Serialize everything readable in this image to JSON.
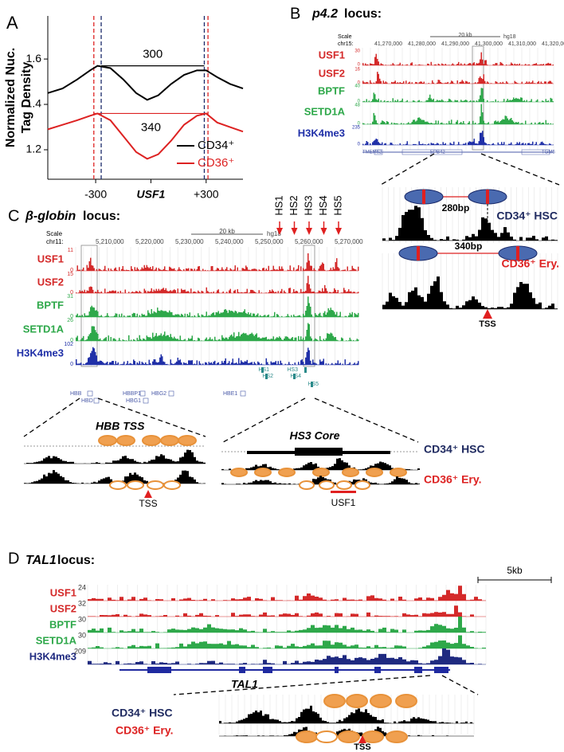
{
  "chart_data": {
    "type": "line",
    "panel_label": "A",
    "ylabel": [
      "Normalized Nuc.",
      "Tag Density"
    ],
    "x": [
      -560,
      -480,
      -400,
      -330,
      -290,
      -220,
      -150,
      -80,
      -20,
      40,
      110,
      180,
      250,
      300,
      360,
      430,
      500
    ],
    "series": [
      {
        "name": "CD34⁺",
        "color": "#000000",
        "values": [
          1.45,
          1.47,
          1.51,
          1.55,
          1.57,
          1.56,
          1.51,
          1.45,
          1.42,
          1.44,
          1.49,
          1.53,
          1.55,
          1.55,
          1.52,
          1.49,
          1.47
        ]
      },
      {
        "name": "CD36⁺",
        "color": "#dd2222",
        "values": [
          1.29,
          1.31,
          1.33,
          1.35,
          1.36,
          1.33,
          1.26,
          1.19,
          1.16,
          1.18,
          1.24,
          1.31,
          1.35,
          1.36,
          1.32,
          1.3,
          1.28
        ]
      }
    ],
    "xlim": [
      -560,
      500
    ],
    "ylim": [
      1.07,
      1.79
    ],
    "xticks": [
      {
        "value": -300,
        "label": "-300"
      },
      {
        "value": 0,
        "label": "USF1"
      },
      {
        "value": 300,
        "label": "+300"
      }
    ],
    "yticks": [
      1.2,
      1.4,
      1.6
    ],
    "markers": [
      {
        "x": -310,
        "color": "#dd2222"
      },
      {
        "x": -270,
        "color": "#1a2a6a"
      },
      {
        "x": 290,
        "color": "#1a2a6a"
      },
      {
        "x": 310,
        "color": "#dd2222"
      }
    ],
    "annotations": [
      {
        "text": "300",
        "x0": -270,
        "x1": 290,
        "y": 1.57,
        "color": "#000000"
      },
      {
        "text": "340",
        "x0": -310,
        "x1": 310,
        "y": 1.36,
        "color": "#dd2222"
      }
    ],
    "legend": "lower right"
  },
  "panels": {
    "B": {
      "label": "B",
      "locus": "p4.2",
      "locus_suffix": " locus:",
      "scale": "Scale",
      "scalebar": "20 kb",
      "assembly": "hg18",
      "chrom": "chr15:",
      "coords": [
        "41,270,000",
        "41,280,000",
        "41,290,000",
        "41,300,000",
        "41,310,000",
        "41,320,000"
      ],
      "tracks": [
        {
          "name": "USF1",
          "color": "#d42a2a",
          "max": "30",
          "min": "0"
        },
        {
          "name": "USF2",
          "color": "#d42a2a",
          "max": "16",
          "min": "0"
        },
        {
          "name": "BPTF",
          "color": "#2ea84a",
          "max": "40",
          "min": "0"
        },
        {
          "name": "SETD1A",
          "color": "#2ea84a",
          "max": "48",
          "min": "0"
        },
        {
          "name": "H3K4me3",
          "color": "#2030a8",
          "max": "235",
          "min": "0"
        }
      ],
      "genes": [
        "TMEM62",
        "EPB42",
        "TGM5"
      ],
      "zoom": {
        "spacing_hsc": "280bp",
        "hsc": "CD34⁺ HSC",
        "spacing_ery": "340bp",
        "ery": "CD36⁺ Ery.",
        "tss": "TSS"
      }
    },
    "C": {
      "label": "C",
      "locus": "β-globin",
      "locus_suffix": " locus:",
      "scale": "Scale",
      "scalebar": "20 kb",
      "assembly": "hg18",
      "chrom": "chr11:",
      "coords": [
        "5,210,000",
        "5,220,000",
        "5,230,000",
        "5,240,000",
        "5,250,000",
        "5,260,000",
        "5,270,000"
      ],
      "hs_sites": [
        "HS1",
        "HS2",
        "HS3",
        "HS4",
        "HS5"
      ],
      "tracks": [
        {
          "name": "USF1",
          "color": "#d42a2a",
          "max": "11",
          "min": "0"
        },
        {
          "name": "USF2",
          "color": "#d42a2a",
          "max": "15",
          "min": "0"
        },
        {
          "name": "BPTF",
          "color": "#2ea84a",
          "max": "31",
          "min": "0"
        },
        {
          "name": "SETD1A",
          "color": "#2ea84a",
          "max": "26",
          "min": "0"
        },
        {
          "name": "H3K4me3",
          "color": "#2030a8",
          "max": "102",
          "min": "0"
        }
      ],
      "hs_annotations": [
        "HS1",
        "HS2",
        "HS3",
        "HS4",
        "HS5"
      ],
      "genes": [
        "HBB",
        "HBD",
        "HBBP1",
        "HBG1",
        "HBG2",
        "HBE1"
      ],
      "zoom_left": {
        "title": "HBB TSS",
        "tss": "TSS"
      },
      "zoom_right": {
        "title": "HS3 Core",
        "hsc": "CD34⁺ HSC",
        "ery": "CD36⁺ Ery.",
        "motif": "USF1"
      }
    },
    "D": {
      "label": "D",
      "locus": "TAL1",
      "locus_suffix": " locus:",
      "scalebar": "5kb",
      "tracks": [
        {
          "name": "USF1",
          "color": "#d42a2a",
          "max": "24"
        },
        {
          "name": "USF2",
          "color": "#d42a2a",
          "max": "32"
        },
        {
          "name": "BPTF",
          "color": "#2ea84a",
          "max": "30"
        },
        {
          "name": "SETD1A",
          "color": "#2ea84a",
          "max": "30"
        },
        {
          "name": "H3K4me3",
          "color": "#1f2a80",
          "max": "209"
        }
      ],
      "gene": "TAL1",
      "zoom": {
        "hsc": "CD34⁺ HSC",
        "ery": "CD36⁺ Ery.",
        "tss": "TSS"
      }
    }
  }
}
